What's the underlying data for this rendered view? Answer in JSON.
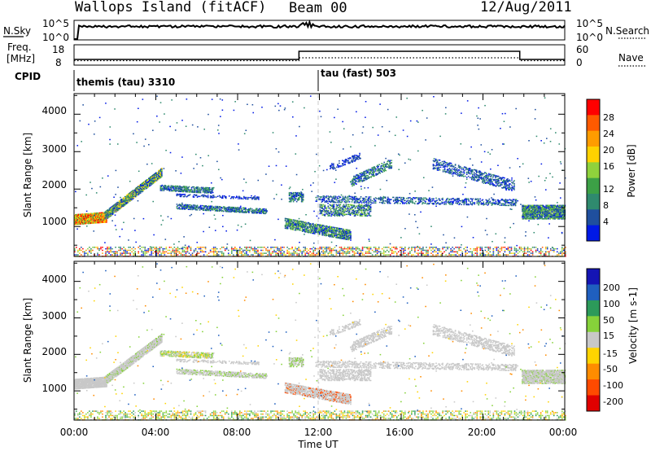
{
  "header": {
    "title": "Wallops Island (fitACF)",
    "beam": "Beam 00",
    "date": "12/Aug/2011"
  },
  "top_panels": {
    "noise_left_label": "N.Sky",
    "noise_right_label": "N.Search",
    "noise_left_ticks": [
      "10^5",
      "10^0"
    ],
    "noise_right_ticks": [
      "10^5",
      "10^0"
    ],
    "freq_label_line1": "Freq.",
    "freq_label_line2": "[MHz]",
    "freq_ticks": [
      "18",
      "8"
    ],
    "nave_label": "Nave",
    "nave_ticks": [
      "60",
      "0"
    ],
    "cpid_label": "CPID",
    "cpid_modes": [
      "themis (tau) 3310",
      "tau (fast) 503"
    ]
  },
  "chart_data": [
    {
      "type": "heatmap",
      "panel": "power",
      "ylabel": "Slant Range [km]",
      "colorbar_label": "Power [dB]",
      "colorbar_ticks": [
        "28",
        "24",
        "20",
        "16",
        "12",
        "8",
        "4"
      ],
      "colorbar_colors": [
        "#ff0000",
        "#ff5a00",
        "#ff9c00",
        "#ffd200",
        "#8fd23c",
        "#3ca046",
        "#2f8a6e",
        "#1f4f9e",
        "#0019e6"
      ],
      "xlabel": "Time UT",
      "x_ticks": [
        "00:00",
        "04:00",
        "08:00",
        "12:00",
        "16:00",
        "20:00",
        "00:00"
      ],
      "y_ticks": [
        "4000",
        "3000",
        "2000",
        "1000"
      ],
      "ylim": [
        200,
        4550
      ],
      "xlim_hours": [
        0,
        24
      ],
      "features": [
        {
          "t": [
            0.0,
            1.5
          ],
          "r": [
            1050,
            1450
          ],
          "level": "high"
        },
        {
          "t": [
            1.5,
            4.3
          ],
          "r": [
            1300,
            2500
          ],
          "level": "mid"
        },
        {
          "t": [
            4.0,
            9.5
          ],
          "r": [
            1200,
            2200
          ],
          "level": "mid"
        },
        {
          "t": [
            10.0,
            13.5
          ],
          "r": [
            700,
            1900
          ],
          "level": "mid"
        },
        {
          "t": [
            11.0,
            21.5
          ],
          "r": [
            1300,
            3000
          ],
          "level": "low"
        },
        {
          "t": [
            21.8,
            24.0
          ],
          "r": [
            1100,
            1600
          ],
          "level": "mid"
        },
        {
          "t": [
            0.0,
            24.0
          ],
          "r": [
            200,
            450
          ],
          "level": "mixed"
        }
      ]
    },
    {
      "type": "heatmap",
      "panel": "velocity",
      "ylabel": "Slant Range [km]",
      "colorbar_label": "Velocity [m s-1]",
      "colorbar_ticks": [
        "200",
        "100",
        "50",
        "15",
        "-15",
        "-50",
        "-100",
        "-200"
      ],
      "colorbar_colors": [
        "#1414b4",
        "#1f5fbf",
        "#2c9a5a",
        "#86d23a",
        "#c8c8c8",
        "#ffd400",
        "#ff8c00",
        "#ff4a00",
        "#e00000"
      ],
      "xlabel": "Time UT",
      "x_ticks": [
        "00:00",
        "04:00",
        "08:00",
        "12:00",
        "16:00",
        "20:00",
        "00:00"
      ],
      "y_ticks": [
        "4000",
        "3000",
        "2000",
        "1000"
      ],
      "ylim": [
        200,
        4550
      ],
      "xlim_hours": [
        0,
        24
      ]
    }
  ]
}
